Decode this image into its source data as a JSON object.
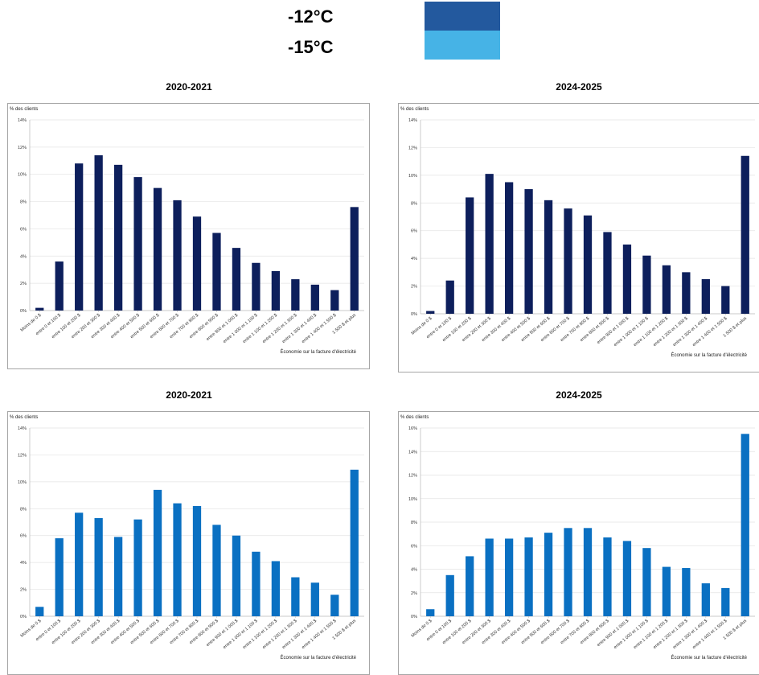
{
  "legend": {
    "items": [
      {
        "label": "-12°C",
        "color": "#23599e"
      },
      {
        "label": "-15°C",
        "color": "#46b3e6"
      }
    ]
  },
  "chart_data": [
    {
      "type": "bar",
      "title": "2020-2021",
      "ylabel": "% des clients",
      "xlabel": "Économie sur la facture d'électricité",
      "color": "#0d1f5c",
      "ylim": [
        0,
        14
      ],
      "yticks": [
        "0%",
        "2%",
        "4%",
        "6%",
        "8%",
        "10%",
        "12%",
        "14%"
      ],
      "categories": [
        "Moins de 0 $",
        "entre 0 et 100 $",
        "entre 100 et 200 $",
        "entre 200 et 300 $",
        "entre 300 et 400 $",
        "entre 400 et 500 $",
        "entre 500 et 600 $",
        "entre 600 et 700 $",
        "entre 700 et 800 $",
        "entre 800 et 900 $",
        "entre 900 et 1 000 $",
        "entre 1 000 et 1 100 $",
        "entre 1 100 et 1 200 $",
        "entre 1 200 et 1 300 $",
        "entre 1 300 et 1 400 $",
        "entre 1 400 et 1 500 $",
        "1 500 $ et plus"
      ],
      "values": [
        0.2,
        3.6,
        10.8,
        11.4,
        10.7,
        9.8,
        9.0,
        8.1,
        6.9,
        5.7,
        4.6,
        3.5,
        2.9,
        2.3,
        1.9,
        1.5,
        7.6
      ]
    },
    {
      "type": "bar",
      "title": "2024-2025",
      "ylabel": "% des clients",
      "xlabel": "Économie sur la facture d'électricité",
      "color": "#0d1f5c",
      "ylim": [
        0,
        14
      ],
      "yticks": [
        "0%",
        "2%",
        "4%",
        "6%",
        "8%",
        "10%",
        "12%",
        "14%"
      ],
      "categories": [
        "Moins de 0 $",
        "entre 0 et 100 $",
        "entre 100 et 200 $",
        "entre 200 et 300 $",
        "entre 300 et 400 $",
        "entre 400 et 500 $",
        "entre 500 et 600 $",
        "entre 600 et 700 $",
        "entre 700 et 800 $",
        "entre 800 et 900 $",
        "entre 900 et 1 000 $",
        "entre 1 000 et 1 100 $",
        "entre 1 100 et 1 200 $",
        "entre 1 200 et 1 300 $",
        "entre 1 300 et 1 400 $",
        "entre 1 400 et 1 500 $",
        "1 500 $ et plus"
      ],
      "values": [
        0.2,
        2.4,
        8.4,
        10.1,
        9.5,
        9.0,
        8.2,
        7.6,
        7.1,
        5.9,
        5.0,
        4.2,
        3.5,
        3.0,
        2.5,
        2.0,
        11.4
      ]
    },
    {
      "type": "bar",
      "title": "2020-2021",
      "ylabel": "% des clients",
      "xlabel": "Économie sur la facture d'électricité",
      "color": "#0a70c2",
      "ylim": [
        0,
        14
      ],
      "yticks": [
        "0%",
        "2%",
        "4%",
        "6%",
        "8%",
        "10%",
        "12%",
        "14%"
      ],
      "categories": [
        "Moins de 0 $",
        "entre 0 et 100 $",
        "entre 100 et 200 $",
        "entre 200 et 300 $",
        "entre 300 et 400 $",
        "entre 400 et 500 $",
        "entre 500 et 600 $",
        "entre 600 et 700 $",
        "entre 700 et 800 $",
        "entre 800 et 900 $",
        "entre 900 et 1 000 $",
        "entre 1 000 et 1 100 $",
        "entre 1 100 et 1 200 $",
        "entre 1 200 et 1 300 $",
        "entre 1 300 et 1 400 $",
        "entre 1 400 et 1 500 $",
        "1 500 $ et plus"
      ],
      "values": [
        0.7,
        5.8,
        7.7,
        7.3,
        5.9,
        7.2,
        9.4,
        8.4,
        8.2,
        6.8,
        6.0,
        4.8,
        4.1,
        2.9,
        2.5,
        1.6,
        10.9
      ]
    },
    {
      "type": "bar",
      "title": "2024-2025",
      "ylabel": "% des clients",
      "xlabel": "Économie sur la facture d'électricité",
      "color": "#0a70c2",
      "ylim": [
        0,
        16
      ],
      "yticks": [
        "0%",
        "2%",
        "4%",
        "6%",
        "8%",
        "10%",
        "12%",
        "14%",
        "16%"
      ],
      "categories": [
        "Moins de 0 $",
        "entre 0 et 100 $",
        "entre 100 et 200 $",
        "entre 200 et 300 $",
        "entre 300 et 400 $",
        "entre 400 et 500 $",
        "entre 500 et 600 $",
        "entre 600 et 700 $",
        "entre 700 et 800 $",
        "entre 800 et 900 $",
        "entre 900 et 1 000 $",
        "entre 1 000 et 1 100 $",
        "entre 1 100 et 1 200 $",
        "entre 1 200 et 1 300 $",
        "entre 1 300 et 1 400 $",
        "entre 1 400 et 1 500 $",
        "1 500 $ et plus"
      ],
      "values": [
        0.6,
        3.5,
        5.1,
        6.6,
        6.6,
        6.7,
        7.1,
        7.5,
        7.5,
        6.7,
        6.4,
        5.8,
        4.2,
        4.1,
        2.8,
        2.4,
        15.5
      ]
    }
  ]
}
